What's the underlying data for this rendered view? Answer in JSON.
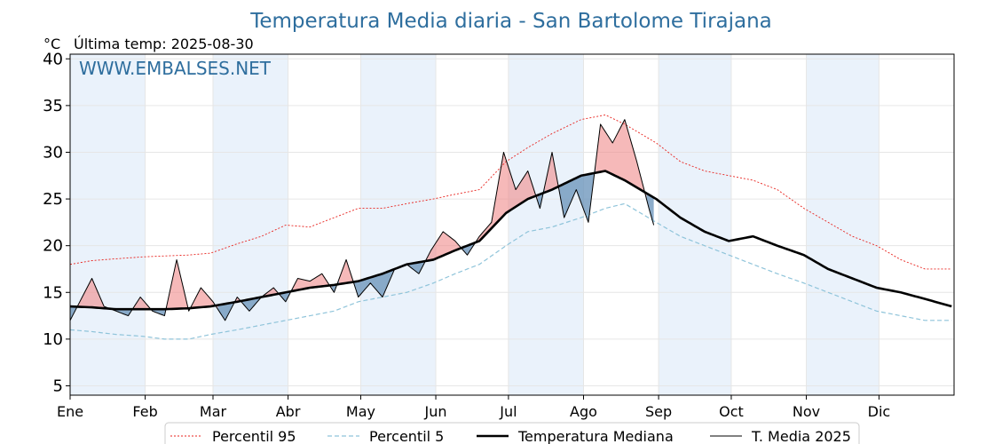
{
  "chart_data": {
    "type": "line",
    "title": "Temperatura Media diaria - San Bartolome Tirajana",
    "unit_label": "°C",
    "last_temp_label": "Última temp: 2025-08-30",
    "watermark": "WWW.EMBALSES.NET",
    "months": [
      "Ene",
      "Feb",
      "Mar",
      "Abr",
      "May",
      "Jun",
      "Jul",
      "Ago",
      "Sep",
      "Oct",
      "Nov",
      "Dic"
    ],
    "yticks": [
      5,
      10,
      15,
      20,
      25,
      30,
      35,
      40
    ],
    "ylim": [
      4,
      40.5
    ],
    "xlim": [
      1,
      366
    ],
    "grid": true,
    "legend_position": "bottom-center",
    "colors": {
      "p95": "#e8231e",
      "p5": "#8fc4da",
      "median": "#000000",
      "media2025": "#000000",
      "above_fill": "#f08a8a",
      "below_fill": "#6f97bd",
      "month_band": "#eaf2fb",
      "title": "#2e6e9e"
    },
    "series": [
      {
        "name": "Percentil 95",
        "style": "dotted-red",
        "anchors_doy": [
          1,
          10,
          20,
          31,
          40,
          50,
          59,
          70,
          80,
          90,
          100,
          110,
          120,
          130,
          140,
          151,
          160,
          170,
          181,
          190,
          200,
          212,
          222,
          230,
          243,
          253,
          263,
          273,
          283,
          293,
          304,
          314,
          324,
          334,
          344,
          354,
          365
        ],
        "values": [
          18.0,
          18.4,
          18.6,
          18.8,
          18.9,
          19.0,
          19.2,
          20.2,
          21.0,
          22.2,
          22.0,
          23.0,
          24.0,
          24.0,
          24.5,
          25.0,
          25.5,
          26.0,
          29.0,
          30.5,
          32.0,
          33.5,
          34.0,
          33.0,
          31.0,
          29.0,
          28.0,
          27.5,
          27.0,
          26.0,
          24.0,
          22.5,
          21.0,
          20.0,
          18.5,
          17.5,
          17.5
        ]
      },
      {
        "name": "Percentil 5",
        "style": "dashed-lightblue",
        "anchors_doy": [
          1,
          10,
          20,
          31,
          40,
          50,
          59,
          70,
          80,
          90,
          100,
          110,
          120,
          130,
          140,
          151,
          160,
          170,
          181,
          190,
          200,
          212,
          222,
          230,
          243,
          253,
          263,
          273,
          283,
          293,
          304,
          314,
          324,
          334,
          344,
          354,
          365
        ],
        "values": [
          11.0,
          10.8,
          10.5,
          10.3,
          10.0,
          10.0,
          10.5,
          11.0,
          11.5,
          12.0,
          12.5,
          13.0,
          14.0,
          14.5,
          15.0,
          16.0,
          17.0,
          18.0,
          20.0,
          21.5,
          22.0,
          23.0,
          24.0,
          24.5,
          22.5,
          21.0,
          20.0,
          19.0,
          18.0,
          17.0,
          16.0,
          15.0,
          14.0,
          13.0,
          12.5,
          12.0,
          12.0
        ]
      },
      {
        "name": "Temperatura Mediana",
        "style": "thick-black",
        "anchors_doy": [
          1,
          10,
          20,
          31,
          40,
          50,
          59,
          70,
          80,
          90,
          100,
          110,
          120,
          130,
          140,
          151,
          160,
          170,
          181,
          190,
          200,
          212,
          222,
          230,
          243,
          253,
          263,
          273,
          283,
          293,
          304,
          314,
          324,
          334,
          344,
          354,
          365
        ],
        "values": [
          13.5,
          13.4,
          13.2,
          13.2,
          13.2,
          13.3,
          13.5,
          14.0,
          14.5,
          15.0,
          15.5,
          15.8,
          16.2,
          17.0,
          18.0,
          18.5,
          19.5,
          20.5,
          23.5,
          25.0,
          26.0,
          27.5,
          28.0,
          27.0,
          25.0,
          23.0,
          21.5,
          20.5,
          21.0,
          20.0,
          19.0,
          17.5,
          16.5,
          15.5,
          15.0,
          14.3,
          13.5
        ]
      },
      {
        "name": "T. Media 2025",
        "style": "thin-black",
        "anchors_doy": [
          1,
          5,
          10,
          15,
          20,
          25,
          30,
          35,
          40,
          45,
          50,
          55,
          60,
          65,
          70,
          75,
          80,
          85,
          90,
          95,
          100,
          105,
          110,
          115,
          120,
          125,
          130,
          135,
          140,
          145,
          150,
          155,
          160,
          165,
          170,
          175,
          180,
          185,
          190,
          195,
          200,
          205,
          210,
          215,
          220,
          225,
          230,
          235,
          240,
          242
        ],
        "values": [
          12.0,
          14.0,
          16.5,
          13.5,
          13.0,
          12.5,
          14.5,
          13.0,
          12.5,
          18.5,
          13.0,
          15.5,
          14.0,
          12.0,
          14.5,
          13.0,
          14.5,
          15.5,
          14.0,
          16.5,
          16.2,
          17.0,
          15.0,
          18.5,
          14.5,
          16.0,
          14.5,
          17.5,
          18.0,
          17.0,
          19.5,
          21.5,
          20.5,
          19.0,
          21.0,
          22.5,
          30.0,
          26.0,
          28.0,
          24.0,
          30.0,
          23.0,
          26.0,
          22.5,
          33.0,
          31.0,
          33.5,
          29.0,
          24.0,
          22.2
        ]
      }
    ],
    "legend": [
      {
        "label": "Percentil 95",
        "style": "dotted-red"
      },
      {
        "label": "Percentil 5",
        "style": "dashed-lightblue"
      },
      {
        "label": "Temperatura Mediana",
        "style": "thick-black"
      },
      {
        "label": "T. Media 2025",
        "style": "thin-black"
      }
    ]
  }
}
